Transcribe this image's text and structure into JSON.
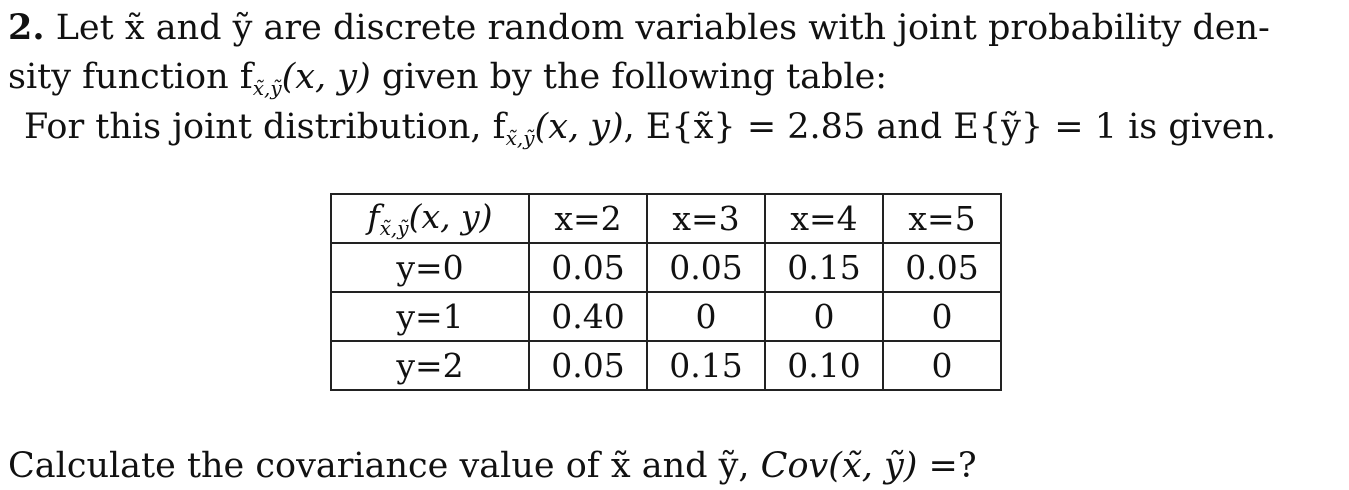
{
  "problem": {
    "number": "2.",
    "line1_text": "Let x̃ and ỹ are discrete random variables with joint probability den-",
    "line2_text": "sity function f",
    "line2_sub": "x̃,ỹ",
    "line2_args": "(x, y)",
    "line2_rest": " given by the following table:",
    "line3_text": "For this joint distribution, f",
    "line3_sub": "x̃,ỹ",
    "line3_args": "(x, y)",
    "line3_rest": ", E{x̃} = 2.85 and E{ỹ} = 1 is given."
  },
  "table": {
    "corner_label": "f",
    "corner_sub": "x̃,ỹ",
    "corner_args": "(x, y)",
    "columns": [
      "x=2",
      "x=3",
      "x=4",
      "x=5"
    ],
    "rows": [
      {
        "label": "y=0",
        "values": [
          "0.05",
          "0.05",
          "0.15",
          "0.05"
        ]
      },
      {
        "label": "y=1",
        "values": [
          "0.40",
          "0",
          "0",
          "0"
        ]
      },
      {
        "label": "y=2",
        "values": [
          "0.05",
          "0.15",
          "0.10",
          "0"
        ]
      }
    ]
  },
  "question": {
    "text": "Calculate the covariance value of x̃ and ỹ, ",
    "expr": "Cov(x̃, ỹ)",
    "tail": " =?"
  }
}
